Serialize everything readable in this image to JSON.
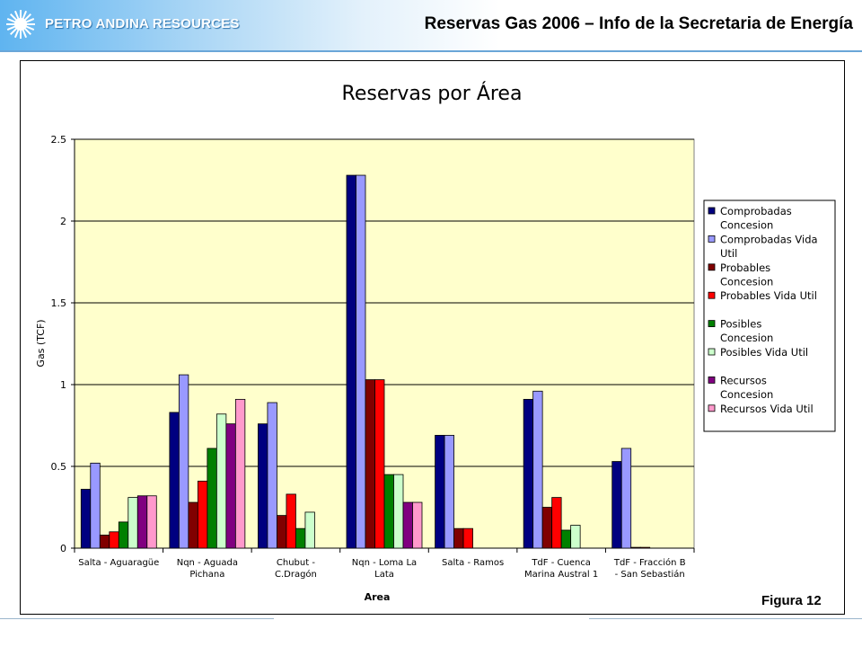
{
  "header": {
    "company": "PETRO ANDINA RESOURCES",
    "title": "Reservas Gas 2006 – Info de la Secretaria de Energía",
    "accent_color": "#5fb4f0",
    "logo_icon": "sun-icon"
  },
  "figure_label": "Figura 12",
  "chart_data": {
    "type": "bar",
    "title": "Reservas por Área",
    "xlabel": "Area",
    "ylabel": "Gas (TCF)",
    "ylim": [
      0,
      2.5
    ],
    "yticks": [
      "0",
      "0.5",
      "1",
      "1.5",
      "2",
      "2.5"
    ],
    "grid": true,
    "plot_background": "#ffffcc",
    "legend_position": "right",
    "categories": [
      [
        "Salta - Aguaragüe"
      ],
      [
        "Nqn - Aguada",
        "Pichana"
      ],
      [
        "Chubut -",
        "C.Dragón"
      ],
      [
        "Nqn - Loma La",
        "Lata"
      ],
      [
        "Salta - Ramos"
      ],
      [
        "TdF - Cuenca",
        "Marina Austral 1"
      ],
      [
        "TdF - Fracción B",
        "- San Sebastián"
      ]
    ],
    "series": [
      {
        "name": [
          "Comprobadas",
          "Concesion"
        ],
        "color": "#000080",
        "values": [
          0.36,
          0.83,
          0.76,
          2.28,
          0.69,
          0.91,
          0.53
        ]
      },
      {
        "name": [
          "Comprobadas Vida",
          "Util"
        ],
        "color": "#9999ff",
        "values": [
          0.52,
          1.06,
          0.89,
          2.28,
          0.69,
          0.96,
          0.61
        ]
      },
      {
        "name": [
          "Probables",
          "Concesion"
        ],
        "color": "#800000",
        "values": [
          0.08,
          0.28,
          0.2,
          1.03,
          0.12,
          0.25,
          0.005
        ]
      },
      {
        "name": [
          "Probables Vida Util"
        ],
        "color": "#ff0000",
        "values": [
          0.1,
          0.41,
          0.33,
          1.03,
          0.12,
          0.31,
          0.005
        ]
      },
      {
        "name": [
          "Posibles",
          "Concesion"
        ],
        "color": "#008000",
        "values": [
          0.16,
          0.61,
          0.12,
          0.45,
          0,
          0.11,
          0
        ]
      },
      {
        "name": [
          "Posibles Vida Util"
        ],
        "color": "#ccffcc",
        "values": [
          0.31,
          0.82,
          0.22,
          0.45,
          0,
          0.14,
          0
        ]
      },
      {
        "name": [
          "Recursos",
          "Concesion"
        ],
        "color": "#800080",
        "values": [
          0.32,
          0.76,
          0,
          0.28,
          0,
          0,
          0
        ]
      },
      {
        "name": [
          "Recursos Vida Util"
        ],
        "color": "#ff99cc",
        "values": [
          0.32,
          0.91,
          0,
          0.28,
          0,
          0,
          0
        ]
      }
    ]
  }
}
